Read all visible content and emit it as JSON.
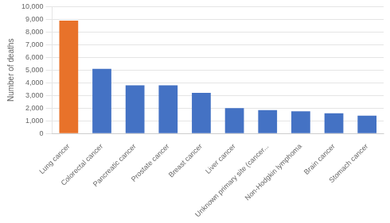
{
  "chart_data": {
    "type": "bar",
    "categories": [
      "Lung cancer",
      "Colorectal cancer",
      "Pancreatic cancer",
      "Prostate cancer",
      "Breast cancer",
      "Liver cancer",
      "Unknown primary site (cancer...",
      "Non-Hodgkin lymphoma",
      "Brain cancer",
      "Stomach cancer"
    ],
    "values": [
      8900,
      5100,
      3800,
      3800,
      3200,
      2000,
      1850,
      1750,
      1600,
      1400
    ],
    "colors": [
      "#E8722A",
      "#4472C4",
      "#4472C4",
      "#4472C4",
      "#4472C4",
      "#4472C4",
      "#4472C4",
      "#4472C4",
      "#4472C4",
      "#4472C4"
    ],
    "ylabel": "Number of deaths",
    "ylim": [
      0,
      10000
    ],
    "yticks": [
      0,
      {
        "value": 1000,
        "label": "1,000"
      },
      {
        "value": 2000,
        "label": "2,000"
      },
      {
        "value": 3000,
        "label": "3,000"
      },
      {
        "value": 4000,
        "label": "4,000"
      },
      {
        "value": 5000,
        "label": "5,000"
      },
      {
        "value": 6000,
        "label": "6,000"
      },
      {
        "value": 7000,
        "label": "7,000"
      },
      {
        "value": 8000,
        "label": "8,000"
      },
      {
        "value": 9000,
        "label": "9,000"
      },
      {
        "value": 10000,
        "label": "10,000"
      }
    ],
    "grid": true
  }
}
